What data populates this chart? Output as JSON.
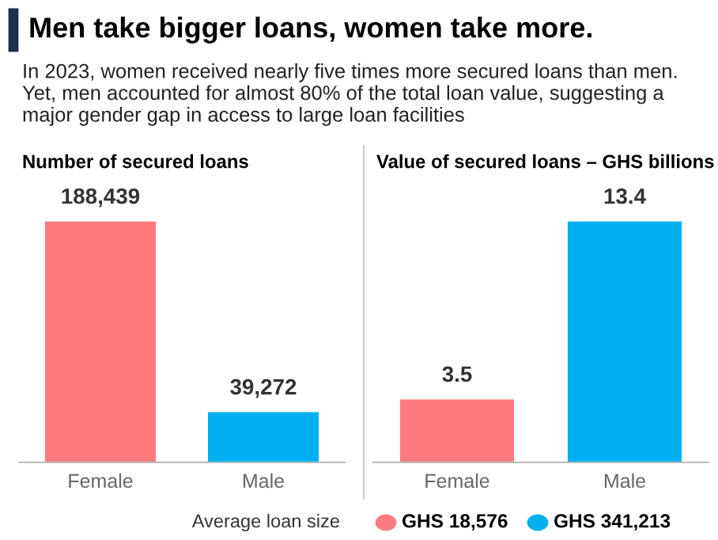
{
  "chart_data": [
    {
      "type": "other",
      "title": "Men take bigger loans, women take more.",
      "subtitle": "In 2023, women received nearly five times more secured loans than men. Yet, men accounted for almost 80% of the total loan value, suggesting a major gender gap in access to large loan facilities",
      "annotations": [
        "Average loan size",
        "GHS 18,576",
        "GHS 341,213"
      ],
      "colors": [
        "#ff7b80",
        "#00b0f0"
      ]
    },
    {
      "type": "bar",
      "title": "Number of secured loans",
      "categories": [
        "Female",
        "Male"
      ],
      "values": [
        188439,
        39272
      ],
      "colors": [
        "#ff7b80",
        "#00b0f0"
      ],
      "value_labels": [
        "188,439",
        "39,272"
      ]
    },
    {
      "type": "bar",
      "title": "Value of secured loans – GHS billions",
      "categories": [
        "Female",
        "Male"
      ],
      "values": [
        3.5,
        13.4
      ],
      "colors": [
        "#ff7b80",
        "#00b0f0"
      ],
      "data_labels": true
    }
  ]
}
